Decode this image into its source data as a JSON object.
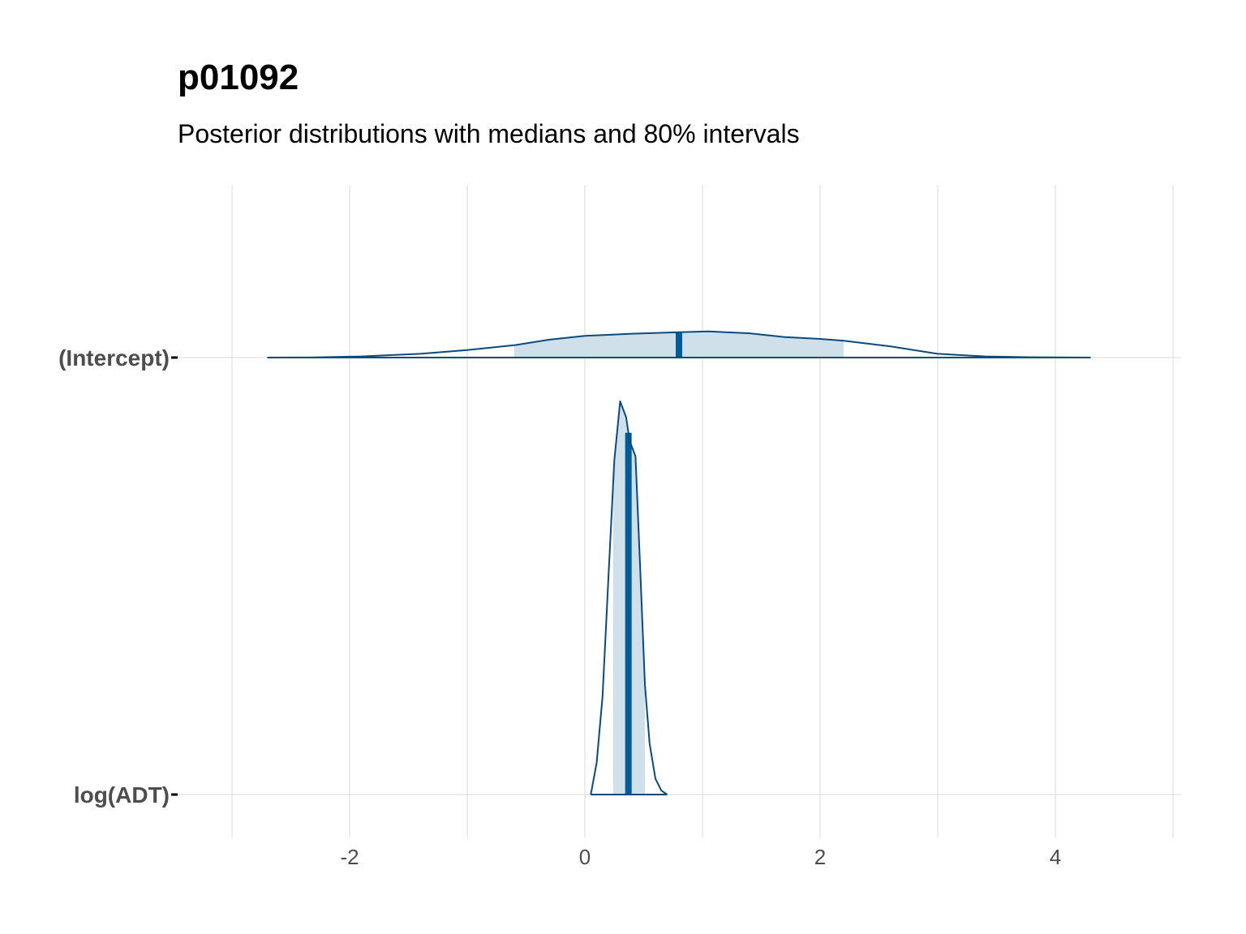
{
  "chart_data": {
    "type": "area",
    "title": "p01092",
    "subtitle": "Posterior distributions with medians and 80% intervals",
    "xlabel": "",
    "ylabel": "",
    "xlim": [
      -3.0,
      5.0
    ],
    "x_ticks": [
      -2,
      0,
      2,
      4
    ],
    "x_tick_labels": [
      "-2",
      "0",
      "2",
      "4"
    ],
    "grid": true,
    "legend": "none",
    "colors": {
      "line": "#0b4a7d",
      "fill": "#d0e0eb",
      "median": "#005b96",
      "grid": "#d9d9d9",
      "tick_label": "#4d4d4d"
    },
    "series": [
      {
        "name": "(Intercept)",
        "median": 0.8,
        "interval_80": [
          -0.6,
          2.2
        ],
        "range": [
          -2.7,
          4.3
        ],
        "density": [
          [
            -2.7,
            0.0
          ],
          [
            -2.3,
            0.005
          ],
          [
            -1.9,
            0.03
          ],
          [
            -1.4,
            0.1
          ],
          [
            -1.0,
            0.2
          ],
          [
            -0.6,
            0.33
          ],
          [
            -0.3,
            0.48
          ],
          [
            0.0,
            0.58
          ],
          [
            0.4,
            0.64
          ],
          [
            0.8,
            0.68
          ],
          [
            1.05,
            0.7
          ],
          [
            1.4,
            0.65
          ],
          [
            1.7,
            0.55
          ],
          [
            2.0,
            0.5
          ],
          [
            2.2,
            0.45
          ],
          [
            2.6,
            0.3
          ],
          [
            3.0,
            0.1
          ],
          [
            3.4,
            0.03
          ],
          [
            3.8,
            0.008
          ],
          [
            4.3,
            0.0
          ]
        ]
      },
      {
        "name": "log(ADT)",
        "median": 0.37,
        "interval_80": [
          0.24,
          0.51
        ],
        "range": [
          0.05,
          0.7
        ],
        "density": [
          [
            0.05,
            0.0
          ],
          [
            0.1,
            0.08
          ],
          [
            0.15,
            0.25
          ],
          [
            0.2,
            0.55
          ],
          [
            0.25,
            0.85
          ],
          [
            0.3,
            1.0
          ],
          [
            0.35,
            0.96
          ],
          [
            0.38,
            0.9
          ],
          [
            0.43,
            0.86
          ],
          [
            0.47,
            0.58
          ],
          [
            0.51,
            0.28
          ],
          [
            0.55,
            0.13
          ],
          [
            0.6,
            0.04
          ],
          [
            0.65,
            0.01
          ],
          [
            0.7,
            0.0
          ]
        ]
      }
    ]
  }
}
